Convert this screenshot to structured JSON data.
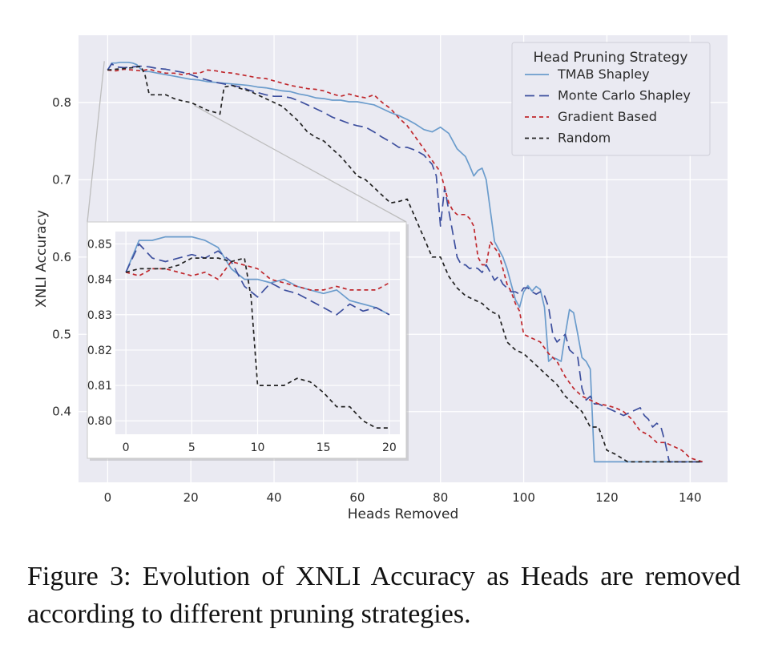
{
  "chart_data": {
    "type": "line",
    "title": "",
    "xlabel": "Heads Removed",
    "ylabel": "XNLI Accuracy",
    "xlim": [
      -7,
      149
    ],
    "ylim": [
      0.3085,
      0.887
    ],
    "xticks": [
      0,
      20,
      40,
      60,
      80,
      100,
      120,
      140
    ],
    "yticks": [
      0.4,
      0.5,
      0.6,
      0.7,
      0.8
    ],
    "ytick_labels": [
      "0.4",
      "0.5",
      "0.6",
      "0.7",
      "0.8"
    ],
    "grid": true,
    "legend": {
      "title": "Head Pruning Strategy",
      "position": "top-right"
    },
    "series": [
      {
        "name": "TMAB Shapley",
        "color": "#6b9ccc",
        "dash": "solid",
        "x": [
          0,
          1,
          2,
          3,
          4,
          5,
          6,
          7,
          8,
          9,
          10,
          12,
          14,
          16,
          18,
          20,
          22,
          24,
          26,
          28,
          30,
          32,
          34,
          36,
          38,
          40,
          42,
          44,
          46,
          48,
          50,
          52,
          54,
          56,
          58,
          60,
          62,
          64,
          66,
          68,
          70,
          72,
          74,
          76,
          78,
          80,
          82,
          84,
          85,
          86,
          87,
          88,
          89,
          90,
          91,
          92,
          93,
          94,
          95,
          96,
          97,
          98,
          99,
          100,
          101,
          102,
          103,
          104,
          105,
          106,
          107,
          108,
          109,
          110,
          111,
          112,
          113,
          114,
          115,
          116,
          117,
          118,
          120,
          125,
          130,
          135,
          140,
          143
        ],
        "y": [
          0.842,
          0.851,
          0.851,
          0.852,
          0.852,
          0.852,
          0.851,
          0.849,
          0.843,
          0.84,
          0.84,
          0.838,
          0.836,
          0.834,
          0.832,
          0.83,
          0.829,
          0.827,
          0.826,
          0.825,
          0.824,
          0.823,
          0.822,
          0.82,
          0.819,
          0.817,
          0.815,
          0.814,
          0.811,
          0.809,
          0.806,
          0.805,
          0.803,
          0.803,
          0.801,
          0.801,
          0.799,
          0.797,
          0.792,
          0.787,
          0.783,
          0.778,
          0.772,
          0.765,
          0.762,
          0.768,
          0.76,
          0.74,
          0.735,
          0.73,
          0.718,
          0.705,
          0.712,
          0.715,
          0.7,
          0.66,
          0.62,
          0.61,
          0.6,
          0.585,
          0.565,
          0.545,
          0.535,
          0.555,
          0.563,
          0.556,
          0.562,
          0.558,
          0.535,
          0.465,
          0.47,
          0.468,
          0.465,
          0.5,
          0.532,
          0.528,
          0.5,
          0.47,
          0.465,
          0.455,
          0.335,
          0.335,
          0.335,
          0.335,
          0.335,
          0.335,
          0.335,
          0.335
        ]
      },
      {
        "name": "Monte Carlo Shapley",
        "color": "#3d4f9e",
        "dash": "long",
        "x": [
          0,
          1,
          2,
          4,
          6,
          8,
          10,
          12,
          14,
          16,
          18,
          20,
          22,
          24,
          26,
          28,
          30,
          32,
          34,
          36,
          38,
          40,
          42,
          44,
          46,
          48,
          50,
          52,
          54,
          56,
          58,
          60,
          62,
          64,
          66,
          68,
          70,
          72,
          74,
          76,
          78,
          79,
          80,
          81,
          82,
          83,
          84,
          85,
          86,
          87,
          88,
          89,
          90,
          91,
          92,
          93,
          94,
          95,
          96,
          97,
          98,
          99,
          100,
          101,
          102,
          103,
          104,
          105,
          106,
          107,
          108,
          109,
          110,
          111,
          112,
          113,
          114,
          115,
          116,
          117,
          118,
          120,
          122,
          124,
          126,
          128,
          129,
          130,
          131,
          132,
          133,
          134,
          135,
          137,
          140,
          143
        ],
        "y": [
          0.842,
          0.85,
          0.846,
          0.845,
          0.846,
          0.847,
          0.846,
          0.844,
          0.843,
          0.841,
          0.839,
          0.836,
          0.832,
          0.829,
          0.826,
          0.824,
          0.822,
          0.82,
          0.816,
          0.813,
          0.81,
          0.808,
          0.808,
          0.806,
          0.802,
          0.797,
          0.792,
          0.787,
          0.781,
          0.777,
          0.773,
          0.77,
          0.768,
          0.762,
          0.755,
          0.749,
          0.742,
          0.742,
          0.738,
          0.732,
          0.72,
          0.705,
          0.64,
          0.69,
          0.66,
          0.63,
          0.6,
          0.59,
          0.59,
          0.585,
          0.587,
          0.585,
          0.58,
          0.59,
          0.58,
          0.57,
          0.575,
          0.565,
          0.56,
          0.555,
          0.555,
          0.552,
          0.56,
          0.56,
          0.555,
          0.552,
          0.555,
          0.55,
          0.535,
          0.5,
          0.49,
          0.495,
          0.5,
          0.48,
          0.475,
          0.47,
          0.43,
          0.415,
          0.42,
          0.41,
          0.41,
          0.405,
          0.4,
          0.395,
          0.4,
          0.405,
          0.395,
          0.39,
          0.38,
          0.385,
          0.38,
          0.36,
          0.335,
          0.335,
          0.335,
          0.335
        ]
      },
      {
        "name": "Gradient Based",
        "color": "#c0282d",
        "dash": "short",
        "x": [
          0,
          2,
          4,
          6,
          8,
          10,
          12,
          14,
          16,
          18,
          20,
          22,
          24,
          26,
          28,
          30,
          32,
          34,
          36,
          38,
          40,
          42,
          44,
          46,
          48,
          50,
          52,
          54,
          56,
          58,
          60,
          62,
          64,
          66,
          68,
          70,
          72,
          74,
          76,
          78,
          80,
          81,
          82,
          83,
          84,
          86,
          87,
          88,
          89,
          90,
          91,
          92,
          93,
          94,
          95,
          96,
          97,
          98,
          99,
          100,
          102,
          104,
          106,
          108,
          110,
          112,
          114,
          116,
          118,
          120,
          122,
          124,
          126,
          128,
          130,
          132,
          134,
          136,
          138,
          140,
          143
        ],
        "y": [
          0.842,
          0.841,
          0.843,
          0.842,
          0.841,
          0.843,
          0.84,
          0.838,
          0.838,
          0.836,
          0.838,
          0.838,
          0.842,
          0.841,
          0.839,
          0.838,
          0.836,
          0.834,
          0.832,
          0.831,
          0.828,
          0.825,
          0.822,
          0.82,
          0.818,
          0.817,
          0.815,
          0.811,
          0.808,
          0.811,
          0.808,
          0.806,
          0.81,
          0.8,
          0.792,
          0.78,
          0.77,
          0.755,
          0.74,
          0.725,
          0.71,
          0.69,
          0.67,
          0.66,
          0.655,
          0.655,
          0.65,
          0.64,
          0.6,
          0.59,
          0.59,
          0.62,
          0.612,
          0.605,
          0.585,
          0.565,
          0.555,
          0.54,
          0.53,
          0.5,
          0.495,
          0.49,
          0.475,
          0.465,
          0.445,
          0.43,
          0.42,
          0.415,
          0.41,
          0.408,
          0.405,
          0.4,
          0.39,
          0.375,
          0.37,
          0.36,
          0.36,
          0.355,
          0.35,
          0.34,
          0.335
        ]
      },
      {
        "name": "Random",
        "color": "#222222",
        "dash": "short",
        "x": [
          0,
          2,
          4,
          6,
          8,
          9,
          10,
          12,
          14,
          16,
          18,
          20,
          22,
          24,
          26,
          27,
          28,
          30,
          32,
          34,
          36,
          38,
          40,
          42,
          44,
          46,
          48,
          50,
          52,
          54,
          56,
          58,
          60,
          62,
          64,
          66,
          68,
          70,
          72,
          74,
          76,
          78,
          80,
          82,
          84,
          86,
          88,
          90,
          92,
          94,
          96,
          98,
          100,
          102,
          104,
          106,
          108,
          110,
          112,
          114,
          116,
          118,
          120,
          122,
          125,
          130,
          135,
          140,
          143
        ],
        "y": [
          0.842,
          0.843,
          0.844,
          0.845,
          0.847,
          0.835,
          0.81,
          0.81,
          0.81,
          0.805,
          0.802,
          0.8,
          0.795,
          0.79,
          0.787,
          0.785,
          0.82,
          0.822,
          0.818,
          0.815,
          0.81,
          0.805,
          0.8,
          0.795,
          0.785,
          0.775,
          0.762,
          0.755,
          0.75,
          0.74,
          0.73,
          0.718,
          0.705,
          0.7,
          0.69,
          0.68,
          0.67,
          0.672,
          0.675,
          0.65,
          0.625,
          0.6,
          0.6,
          0.575,
          0.56,
          0.55,
          0.545,
          0.54,
          0.53,
          0.525,
          0.49,
          0.48,
          0.475,
          0.465,
          0.455,
          0.445,
          0.435,
          0.42,
          0.41,
          0.4,
          0.38,
          0.38,
          0.35,
          0.345,
          0.335,
          0.335,
          0.335,
          0.335,
          0.335
        ]
      }
    ],
    "inset": {
      "xlim": [
        -0.8,
        20.8
      ],
      "ylim": [
        0.7962,
        0.8535
      ],
      "xticks": [
        0,
        5,
        10,
        15,
        20
      ],
      "yticks": [
        0.8,
        0.81,
        0.82,
        0.83,
        0.84,
        0.85
      ],
      "ytick_labels": [
        "0.80",
        "0.81",
        "0.82",
        "0.83",
        "0.84",
        "0.85"
      ],
      "series": [
        {
          "name": "TMAB Shapley",
          "x": [
            0,
            1,
            2,
            3,
            4,
            5,
            6,
            7,
            8,
            9,
            10,
            11,
            12,
            13,
            14,
            15,
            16,
            17,
            18,
            19,
            20
          ],
          "y": [
            0.842,
            0.851,
            0.851,
            0.852,
            0.852,
            0.852,
            0.851,
            0.849,
            0.843,
            0.84,
            0.84,
            0.839,
            0.84,
            0.838,
            0.837,
            0.836,
            0.837,
            0.834,
            0.833,
            0.832,
            0.83
          ]
        },
        {
          "name": "Monte Carlo Shapley",
          "x": [
            0,
            1,
            2,
            3,
            4,
            5,
            6,
            7,
            8,
            9,
            10,
            11,
            12,
            13,
            14,
            15,
            16,
            17,
            18,
            19,
            20
          ],
          "y": [
            0.842,
            0.85,
            0.846,
            0.845,
            0.846,
            0.847,
            0.846,
            0.848,
            0.845,
            0.838,
            0.835,
            0.839,
            0.837,
            0.836,
            0.834,
            0.832,
            0.83,
            0.833,
            0.831,
            0.832,
            0.83
          ]
        },
        {
          "name": "Gradient Based",
          "x": [
            0,
            1,
            2,
            3,
            4,
            5,
            6,
            7,
            8,
            9,
            10,
            11,
            12,
            13,
            14,
            15,
            16,
            17,
            18,
            19,
            20
          ],
          "y": [
            0.842,
            0.841,
            0.843,
            0.843,
            0.842,
            0.841,
            0.842,
            0.84,
            0.845,
            0.844,
            0.843,
            0.84,
            0.839,
            0.838,
            0.837,
            0.837,
            0.838,
            0.837,
            0.837,
            0.837,
            0.839
          ]
        },
        {
          "name": "Random",
          "x": [
            0,
            1,
            2,
            3,
            4,
            5,
            6,
            7,
            8,
            9,
            9.5,
            10,
            11,
            12,
            13,
            14,
            15,
            16,
            17,
            18,
            19,
            20
          ],
          "y": [
            0.842,
            0.843,
            0.843,
            0.843,
            0.844,
            0.846,
            0.846,
            0.846,
            0.845,
            0.846,
            0.835,
            0.81,
            0.81,
            0.81,
            0.812,
            0.811,
            0.808,
            0.804,
            0.804,
            0.8,
            0.798,
            0.798
          ]
        }
      ]
    }
  },
  "caption": "Figure 3: Evolution of XNLI Accuracy as Heads are removed according to different pruning strategies."
}
